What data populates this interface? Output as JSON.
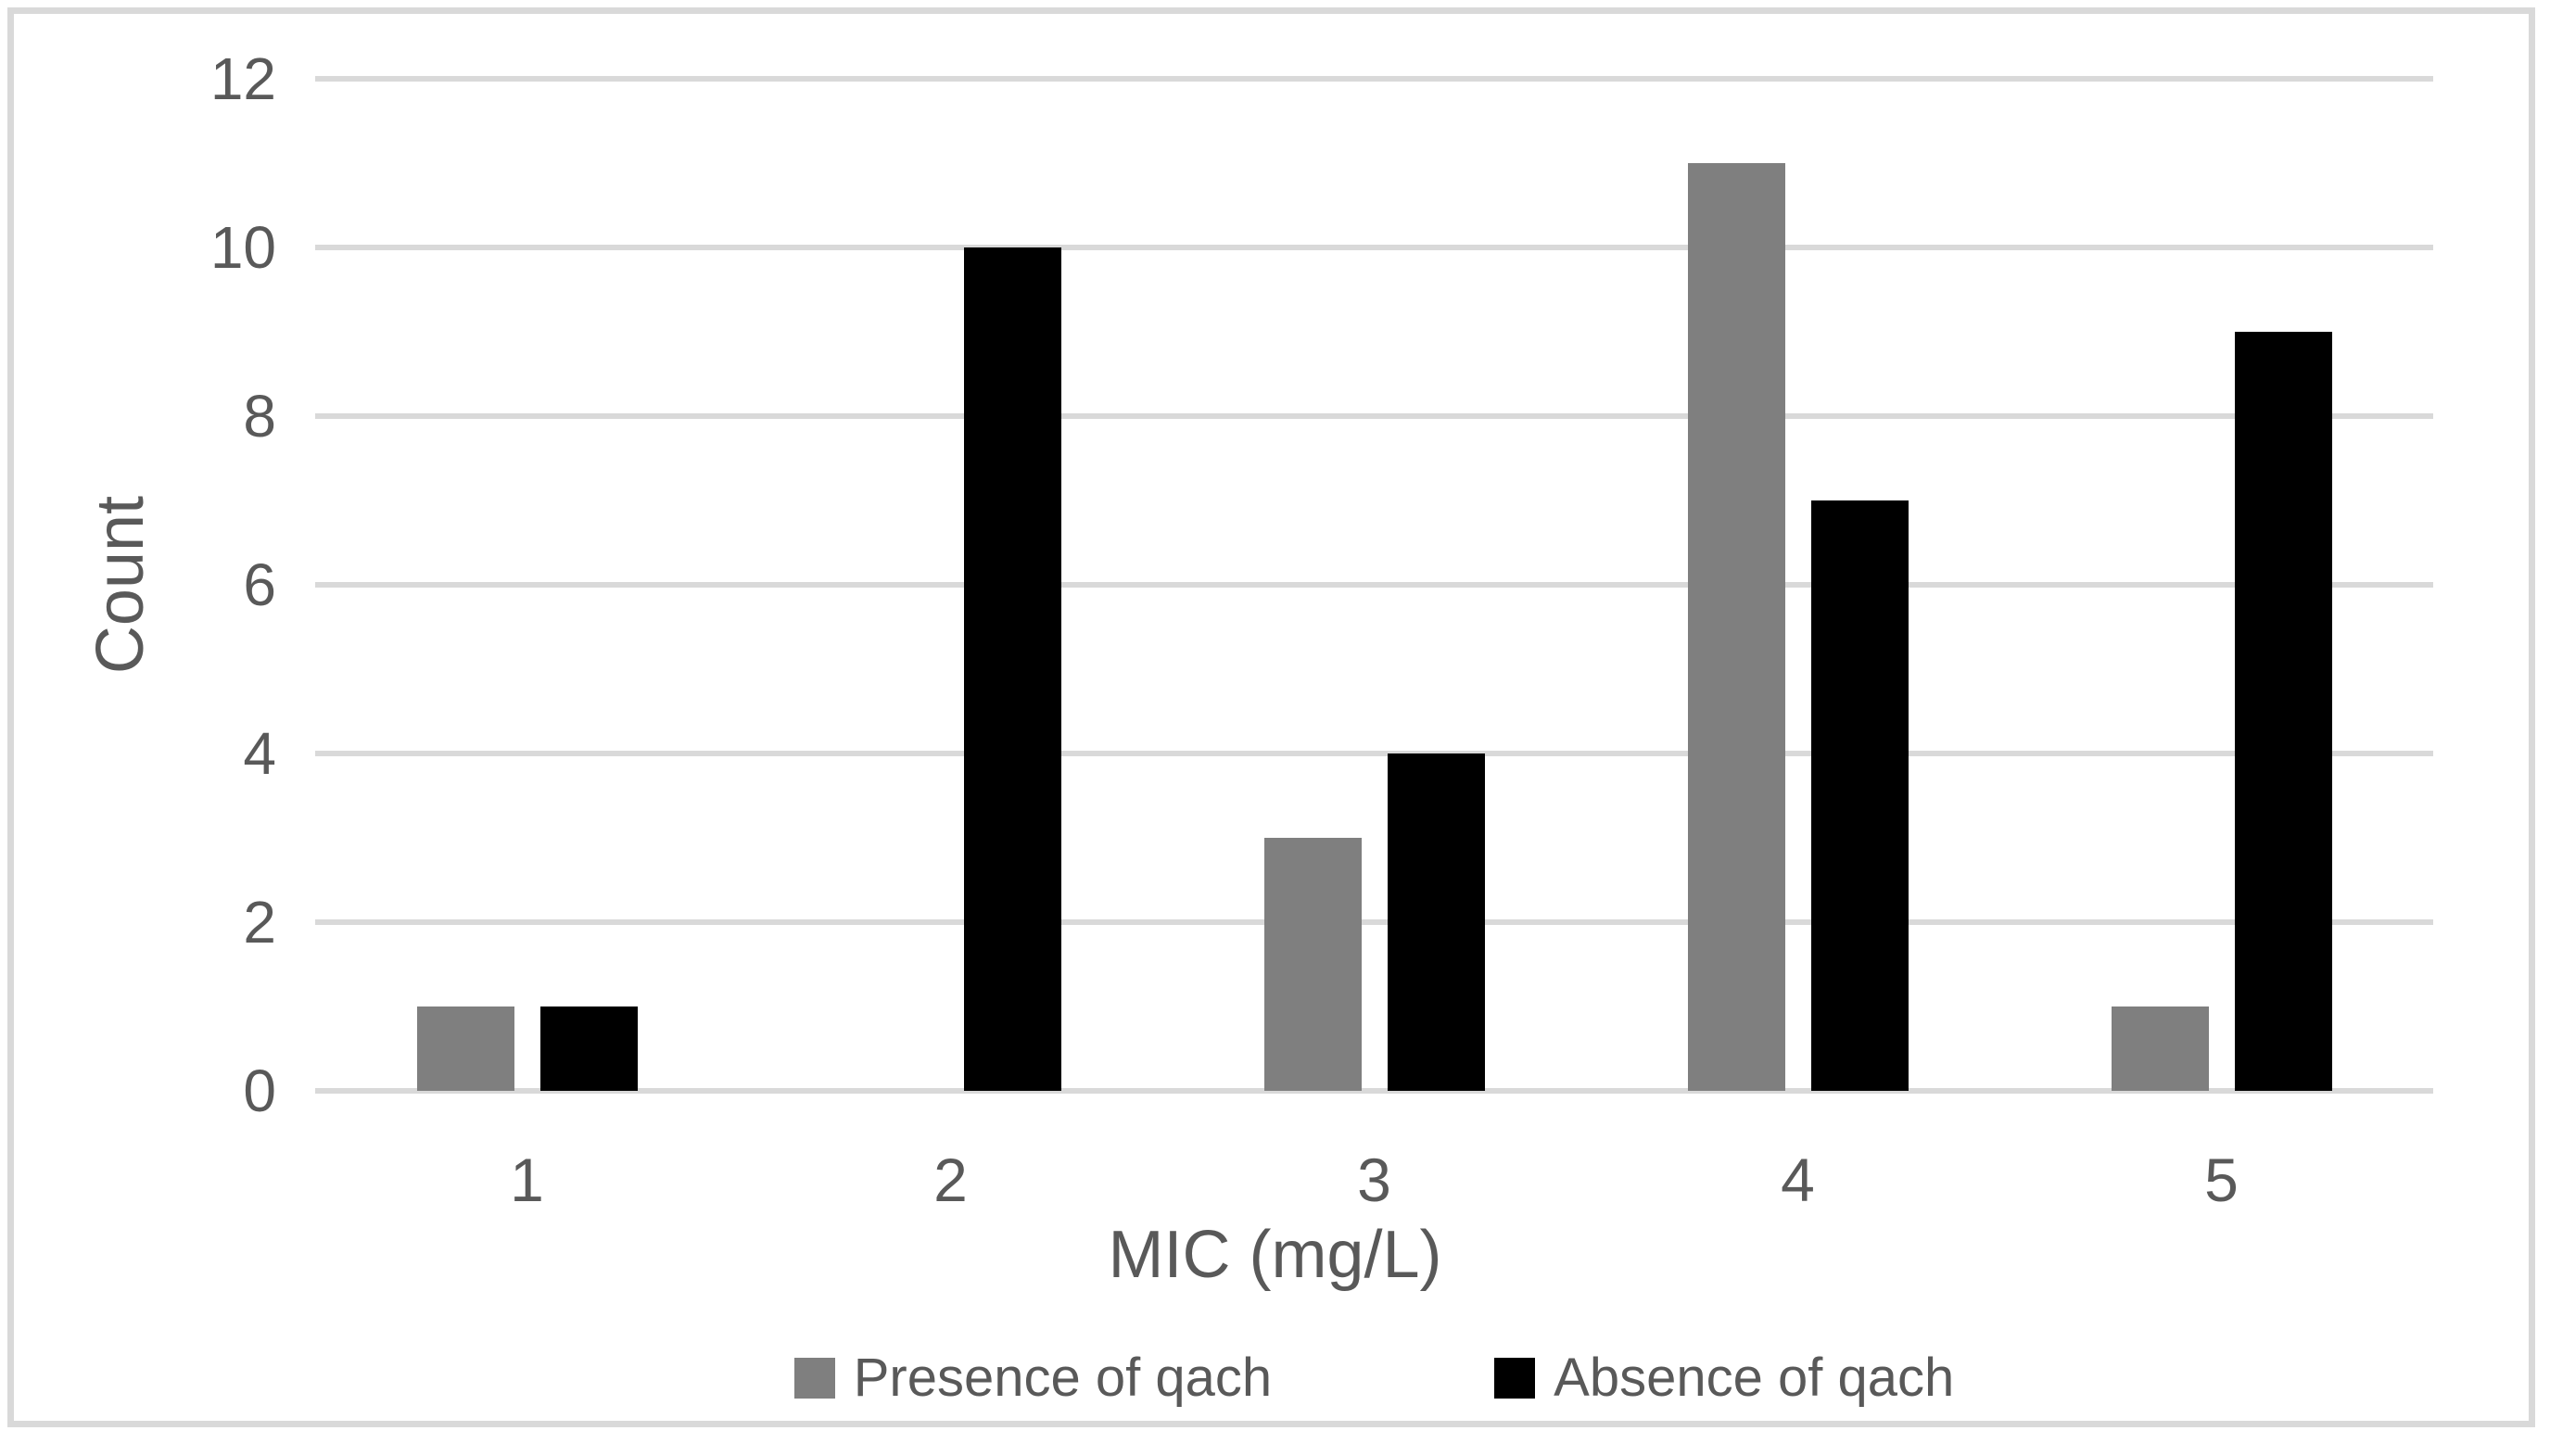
{
  "figure": {
    "background": "#FFFFFF",
    "border_color": "#D9D9D9"
  },
  "chart_data": {
    "type": "bar",
    "title": "",
    "xlabel": "MIC (mg/L)",
    "ylabel": "Count",
    "categories": [
      "1",
      "2",
      "3",
      "4",
      "5"
    ],
    "series": [
      {
        "name": "Presence of qach",
        "color": "#7F7F7F",
        "values": [
          1,
          0,
          3,
          11,
          1
        ]
      },
      {
        "name": "Absence of qach",
        "color": "#000000",
        "values": [
          1,
          10,
          4,
          7,
          9
        ]
      }
    ],
    "ylim": [
      0,
      12
    ],
    "yticks": [
      0,
      2,
      4,
      6,
      8,
      10,
      12
    ],
    "grid": "horizontal",
    "gridline_color": "#D9D9D9",
    "tick_label_color": "#595959",
    "legend_position": "bottom"
  }
}
